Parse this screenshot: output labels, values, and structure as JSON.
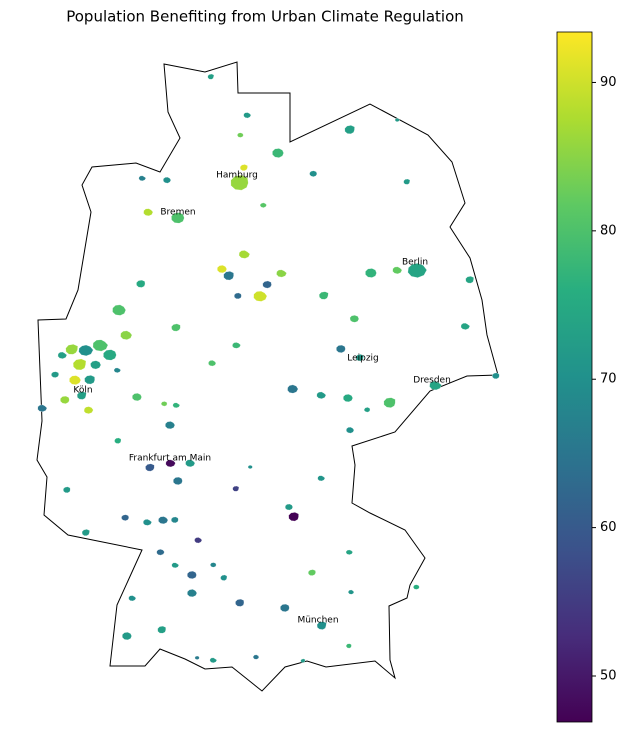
{
  "title": "Population Benefiting from Urban Climate Regulation",
  "cities": [
    "Hamburg",
    "Bremen",
    "Berlin",
    "Leipzig",
    "Dresden",
    "Köln",
    "Frankfurt am Main",
    "München"
  ],
  "colorbar": {
    "colormap": "viridis",
    "lim": [
      46.9,
      93.4
    ],
    "ticks": [
      50,
      60,
      70,
      80,
      90
    ]
  },
  "areas": [
    73,
    83,
    72,
    78,
    73,
    70,
    67,
    70,
    86,
    91,
    81,
    88,
    80,
    72,
    72,
    87,
    91,
    65,
    62,
    85,
    90,
    63,
    78,
    74,
    82,
    77,
    74,
    80,
    74,
    80,
    75,
    80,
    78,
    80,
    65,
    72,
    65,
    72,
    75,
    80,
    73,
    74,
    70,
    70,
    86,
    70,
    80,
    75,
    88,
    73,
    73,
    91,
    72,
    72,
    68,
    85,
    86,
    73,
    89,
    65,
    80,
    76,
    83,
    77,
    67,
    72,
    60,
    48,
    72,
    65,
    56,
    70,
    71,
    72,
    47,
    62,
    70,
    65,
    68,
    72,
    63,
    55,
    62,
    70,
    68,
    72,
    67,
    62,
    82,
    74,
    71,
    65,
    70,
    76,
    70,
    72,
    73,
    66,
    72,
    65,
    78,
    72
  ]
}
